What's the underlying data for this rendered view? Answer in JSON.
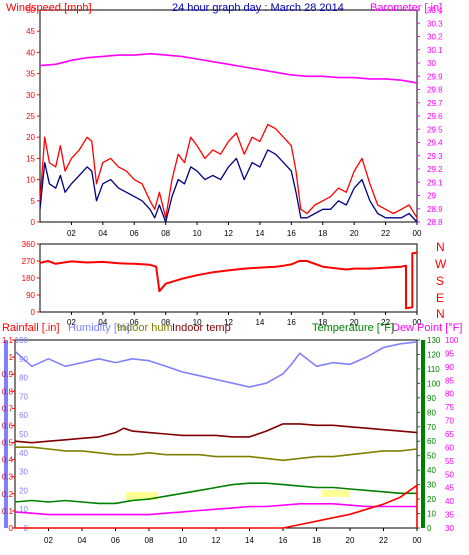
{
  "colors": {
    "wind": "#ff0000",
    "wind_avg": "#000080",
    "baro": "#ff00ff",
    "title": "#0000c0",
    "direction": "#ff0000",
    "rain": "#ff0000",
    "humidity": "#8080ff",
    "indoor_hum": "#808000",
    "indoor_temp": "#800000",
    "temperature": "#008000",
    "dewpoint": "#ff00ff",
    "solar": "#ffff80"
  },
  "panel1": {
    "title": "24 hour graph day : March 28 2014",
    "left_label": "Windspeed [mph]",
    "right_label": "Barometer [.in]"
  },
  "panel2": {
    "compass": [
      "N",
      "W",
      "S",
      "E",
      "N"
    ]
  },
  "panel3": {
    "label_rain": "Rainfall [.in]",
    "label_humidity": "Humidity [%]",
    "label_indoor_hum": "Indoor hum",
    "label_indoor_temp": "Indoor temp",
    "label_temperature": "Temperature [°F]",
    "label_dewpoint": "Dew Point [°F]"
  },
  "chart_data": [
    {
      "type": "line",
      "title": "24 hour graph day : March 28 2014",
      "xlabel": "",
      "x_ticks": [
        "02",
        "04",
        "06",
        "08",
        "10",
        "12",
        "14",
        "16",
        "18",
        "20",
        "22",
        "00"
      ],
      "x_range_hours": [
        0,
        24
      ],
      "ylabel": "Windspeed [mph]",
      "ylim": [
        0,
        50
      ],
      "y_ticks": [
        "0",
        "5",
        "10",
        "15",
        "20",
        "25",
        "30",
        "35",
        "40",
        "45",
        "50"
      ],
      "y2label": "Barometer [.in]",
      "y2lim": [
        28.8,
        30.4
      ],
      "y2_ticks": [
        "28.8",
        "28.9",
        "29",
        "29.1",
        "29.2",
        "29.3",
        "29.4",
        "29.5",
        "29.6",
        "29.7",
        "29.8",
        "29.9",
        "30",
        "30.1",
        "30.2",
        "30.3",
        "30.4"
      ],
      "grid": false,
      "series": [
        {
          "axis": "left",
          "color": "#ff0000",
          "style": "gust",
          "x": [
            0,
            0.3,
            0.6,
            1,
            1.3,
            1.6,
            2,
            2.5,
            3,
            3.3,
            3.6,
            4,
            4.5,
            5,
            5.5,
            6,
            6.5,
            7,
            7.3,
            7.6,
            8,
            8.4,
            8.8,
            9.2,
            9.6,
            10,
            10.5,
            11,
            11.5,
            12,
            12.5,
            13,
            13.5,
            14,
            14.5,
            15,
            15.5,
            16,
            16.3,
            16.6,
            17,
            17.5,
            18,
            18.5,
            19,
            19.5,
            20,
            20.5,
            21,
            21.5,
            22,
            22.5,
            23,
            23.5,
            24
          ],
          "y": [
            5,
            20,
            14,
            13,
            18,
            12,
            15,
            17,
            20,
            19,
            9,
            14,
            15,
            13,
            12,
            10,
            9,
            5,
            3,
            7,
            1,
            10,
            16,
            14,
            20,
            18,
            15,
            17,
            16,
            19,
            21,
            16,
            20,
            19,
            23,
            22,
            20,
            18,
            12,
            3,
            2,
            4,
            5,
            6,
            8,
            7,
            12,
            15,
            9,
            4,
            3,
            2,
            3,
            4,
            1
          ]
        },
        {
          "axis": "left",
          "color": "#000080",
          "style": "average",
          "x": [
            0,
            0.3,
            0.6,
            1,
            1.3,
            1.6,
            2,
            2.5,
            3,
            3.3,
            3.6,
            4,
            4.5,
            5,
            5.5,
            6,
            6.5,
            7,
            7.3,
            7.6,
            8,
            8.4,
            8.8,
            9.2,
            9.6,
            10,
            10.5,
            11,
            11.5,
            12,
            12.5,
            13,
            13.5,
            14,
            14.5,
            15,
            15.5,
            16,
            16.3,
            16.6,
            17,
            17.5,
            18,
            18.5,
            19,
            19.5,
            20,
            20.5,
            21,
            21.5,
            22,
            22.5,
            23,
            23.5,
            24
          ],
          "y": [
            3,
            14,
            9,
            8,
            11,
            7,
            9,
            11,
            13,
            12,
            5,
            9,
            10,
            8,
            7,
            6,
            5,
            3,
            1,
            4,
            0,
            6,
            10,
            9,
            13,
            12,
            10,
            11,
            10,
            13,
            15,
            10,
            14,
            13,
            17,
            16,
            14,
            12,
            7,
            1,
            1,
            2,
            3,
            3,
            5,
            4,
            8,
            10,
            5,
            2,
            1,
            1,
            1,
            2,
            0
          ]
        },
        {
          "axis": "right",
          "color": "#ff00ff",
          "name": "",
          "x": [
            0,
            1,
            2,
            3,
            4,
            5,
            6,
            7,
            8,
            9,
            10,
            11,
            12,
            13,
            14,
            15,
            16,
            17,
            18,
            19,
            20,
            21,
            22,
            23,
            24
          ],
          "y": [
            29.98,
            29.99,
            30.02,
            30.04,
            30.05,
            30.06,
            30.06,
            30.07,
            30.06,
            30.05,
            30.03,
            30.01,
            29.99,
            29.97,
            29.95,
            29.93,
            29.91,
            29.9,
            29.9,
            29.89,
            29.89,
            29.88,
            29.88,
            29.87,
            29.85
          ]
        }
      ]
    },
    {
      "type": "line",
      "title": "",
      "ylabel": "",
      "ylim": [
        0,
        360
      ],
      "y_ticks": [
        "0",
        "90",
        "180",
        "270",
        "360"
      ],
      "x_ticks": [
        "02",
        "04",
        "06",
        "08",
        "10",
        "12",
        "14",
        "16",
        "18",
        "20",
        "22",
        "00"
      ],
      "series": [
        {
          "color": "#ff0000",
          "name": "",
          "x": [
            0,
            0.5,
            1,
            2,
            3,
            4,
            5,
            6,
            7,
            7.4,
            7.6,
            8,
            9,
            10,
            11,
            12,
            13,
            14,
            15,
            15.5,
            16,
            16.5,
            17,
            18,
            19,
            19.5,
            20,
            21,
            22,
            23,
            23.3,
            23.3,
            23.7,
            23.7,
            24
          ],
          "y": [
            260,
            270,
            255,
            268,
            262,
            265,
            258,
            255,
            250,
            240,
            110,
            150,
            175,
            195,
            210,
            220,
            230,
            235,
            240,
            245,
            252,
            270,
            270,
            240,
            230,
            225,
            230,
            230,
            235,
            240,
            245,
            20,
            25,
            310,
            315
          ]
        }
      ]
    },
    {
      "type": "line",
      "title": "",
      "x_ticks": [
        "02",
        "04",
        "06",
        "08",
        "10",
        "12",
        "14",
        "16",
        "18",
        "20",
        "22",
        "00"
      ],
      "axes": {
        "rainfall": {
          "label": "Rainfall [.in]",
          "ylim": [
            0,
            1.1
          ],
          "ticks": [
            "0",
            "0.1",
            "0.2",
            "0.3",
            "0.4",
            "0.5",
            "0.6",
            "0.7",
            "0.8",
            "0.9",
            "1",
            "1.1"
          ]
        },
        "humidity": {
          "label": "Humidity [%]",
          "ylim": [
            0,
            100
          ],
          "ticks": [
            "0",
            "10",
            "20",
            "30",
            "40",
            "50",
            "60",
            "70",
            "80",
            "90",
            "100"
          ]
        },
        "temperature": {
          "label": "Temperature [°F]",
          "ylim": [
            0,
            130
          ],
          "ticks": [
            "0",
            "10",
            "20",
            "30",
            "40",
            "50",
            "60",
            "70",
            "80",
            "90",
            "100",
            "110",
            "120",
            "130"
          ]
        },
        "dewpoint": {
          "label": "Dew Point [°F]",
          "ylim": [
            30,
            100
          ],
          "ticks": [
            "30",
            "35",
            "40",
            "45",
            "50",
            "55",
            "60",
            "65",
            "70",
            "75",
            "80",
            "85",
            "90",
            "95",
            "100"
          ]
        }
      },
      "series": [
        {
          "name": "Humidity [%]",
          "axis": "humidity",
          "color": "#8080ff",
          "x": [
            0,
            1,
            2,
            3,
            4,
            5,
            6,
            7,
            8,
            9,
            10,
            11,
            12,
            13,
            14,
            15,
            16,
            16.5,
            17,
            18,
            19,
            20,
            21,
            22,
            23,
            24
          ],
          "y": [
            94,
            86,
            90,
            86,
            88,
            90,
            88,
            90,
            89,
            86,
            83,
            81,
            79,
            77,
            75,
            77,
            82,
            87,
            93,
            86,
            88,
            87,
            91,
            96,
            98,
            99
          ]
        },
        {
          "name": "Indoor temp",
          "axis": "temperature",
          "color": "#800000",
          "x": [
            0,
            1,
            2,
            3,
            4,
            5,
            6,
            6.5,
            7,
            8,
            9,
            10,
            11,
            12,
            13,
            14,
            15,
            16,
            17,
            18,
            19,
            20,
            21,
            22,
            23,
            24
          ],
          "y": [
            60,
            59,
            60,
            61,
            62,
            63,
            66,
            69,
            67,
            66,
            65,
            64,
            64,
            64,
            63,
            63,
            67,
            72,
            72,
            71,
            71,
            70,
            69,
            68,
            67,
            66
          ]
        },
        {
          "name": "Indoor hum",
          "axis": "humidity",
          "color": "#808000",
          "x": [
            0,
            1,
            2,
            3,
            4,
            5,
            6,
            7,
            8,
            9,
            10,
            11,
            12,
            13,
            14,
            15,
            16,
            17,
            18,
            19,
            20,
            21,
            22,
            23,
            24
          ],
          "y": [
            43,
            43,
            42,
            41,
            41,
            40,
            39,
            39,
            40,
            39,
            39,
            39,
            38,
            38,
            38,
            37,
            36,
            37,
            38,
            38,
            39,
            40,
            41,
            41,
            42
          ]
        },
        {
          "name": "Temperature [°F]",
          "axis": "temperature",
          "color": "#008000",
          "x": [
            0,
            1,
            2,
            3,
            4,
            5,
            6,
            7,
            8,
            9,
            10,
            11,
            12,
            13,
            14,
            15,
            16,
            17,
            18,
            19,
            20,
            21,
            22,
            23,
            24
          ],
          "y": [
            18,
            19,
            18,
            19,
            18,
            17,
            17,
            19,
            20,
            22,
            24,
            26,
            28,
            30,
            31,
            31,
            30,
            29,
            28,
            28,
            27,
            26,
            25,
            24,
            24
          ]
        },
        {
          "name": "Dew Point [°F]",
          "axis": "dewpoint",
          "color": "#ff00ff",
          "x": [
            0,
            1,
            2,
            3,
            4,
            5,
            6,
            7,
            8,
            9,
            10,
            11,
            12,
            13,
            14,
            15,
            16,
            17,
            18,
            19,
            20,
            21,
            22,
            23,
            24
          ],
          "y": [
            36,
            35.5,
            35,
            35,
            35,
            35,
            35,
            35,
            35,
            35.5,
            36,
            36.5,
            37,
            37.5,
            38,
            38,
            38.5,
            39,
            39,
            39,
            38.5,
            38,
            38,
            38,
            38
          ]
        },
        {
          "name": "Rainfall [.in]",
          "axis": "rainfall",
          "color": "#ff0000",
          "x": [
            0,
            16,
            17,
            18,
            19,
            20,
            21,
            22,
            23,
            24,
            24
          ],
          "y": [
            0,
            0,
            0.02,
            0.04,
            0.06,
            0.08,
            0.11,
            0.14,
            0.18,
            0.25,
            0.0
          ]
        }
      ]
    }
  ]
}
